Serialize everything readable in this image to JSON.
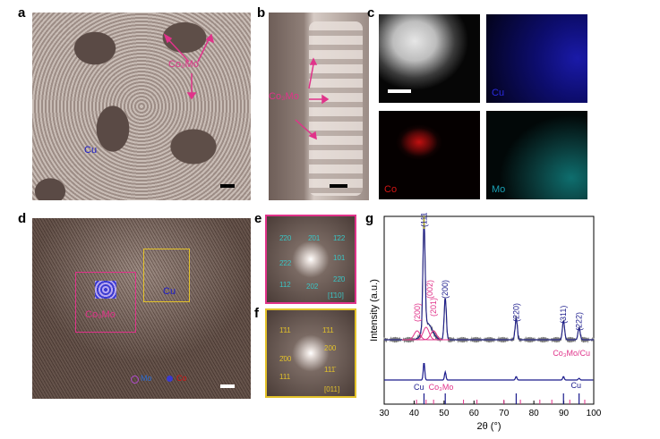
{
  "panels": {
    "a": {
      "letter": "a",
      "label_coalloy": "Co₃Mo",
      "label_cu": "Cu"
    },
    "b": {
      "letter": "b",
      "label_coalloy": "Co₃Mo"
    },
    "c": {
      "letter": "c",
      "labels": [
        "Cu",
        "Co",
        "Mo"
      ]
    },
    "d": {
      "letter": "d",
      "label_coalloy": "Co₃Mo",
      "label_cu": "Cu",
      "legend_mo": "Mo",
      "legend_co": "Co"
    },
    "e": {
      "letter": "e",
      "spots": [
        "2̄20",
        "2̄01",
        "1̄22",
        "2̄22",
        "101",
        "112",
        "202",
        "22̄0"
      ],
      "axis": "[1̄10]"
    },
    "f": {
      "letter": "f",
      "spots": [
        "1̄11",
        "1̄11",
        "200",
        "2̄00",
        "111",
        "111̄"
      ],
      "axis": "[011]"
    },
    "g": {
      "letter": "g"
    }
  },
  "chart_data": {
    "type": "line",
    "xlabel": "2θ (°)",
    "ylabel": "Intensity (a.u.)",
    "xlim": [
      30,
      100
    ],
    "xticks": [
      30,
      40,
      50,
      60,
      70,
      80,
      90,
      100
    ],
    "peak_labels": [
      {
        "text": "(111)",
        "x": 43.3,
        "color": "#1a1a8c"
      },
      {
        "text": "(200)",
        "x": 50.4,
        "color": "#1a1a8c"
      },
      {
        "text": "(220)",
        "x": 74.1,
        "color": "#1a1a8c"
      },
      {
        "text": "(311)",
        "x": 89.9,
        "color": "#1a1a8c"
      },
      {
        "text": "(222)",
        "x": 95.1,
        "color": "#1a1a8c"
      },
      {
        "text": "(200)",
        "x": 41.0,
        "color": "#e0338a"
      },
      {
        "text": "(002)",
        "x": 44.0,
        "color": "#e0338a"
      },
      {
        "text": "(201)",
        "x": 46.5,
        "color": "#e0338a"
      }
    ],
    "trace_labels": [
      "Co₃Mo/Cu",
      "Cu",
      "Co₃Mo",
      "Cu"
    ],
    "cu_reference_peaks": [
      43.3,
      50.4,
      74.1,
      89.9,
      95.1
    ],
    "co3mo_reference_peaks": [
      40.8,
      44.0,
      46.5,
      56.5,
      61.0,
      70.0,
      75.5,
      82.0,
      86.0,
      92.0,
      97.0
    ],
    "grid": false
  }
}
